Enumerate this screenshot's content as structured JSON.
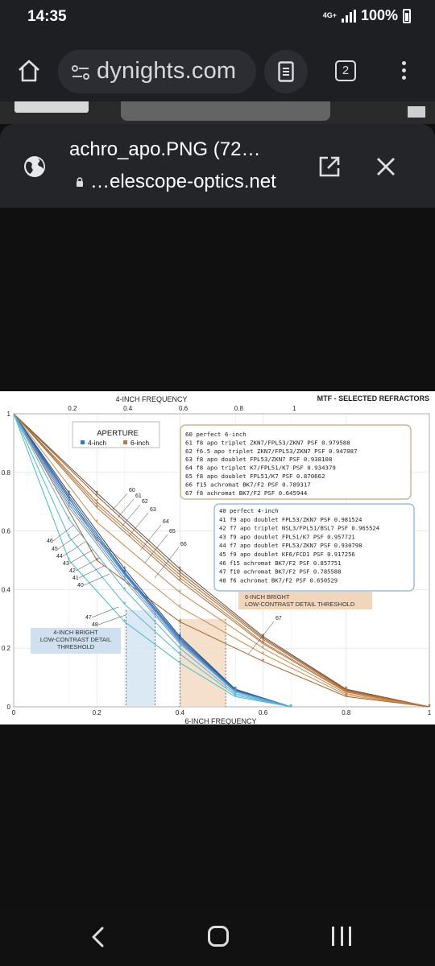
{
  "status": {
    "time": "14:35",
    "network": "4G+",
    "battery": "100%"
  },
  "browser": {
    "url": "dynights.com",
    "tab_count": "2"
  },
  "sheet": {
    "title": "achro_apo.PNG (72…",
    "url": "…elescope-optics.net"
  },
  "chart_data": {
    "type": "line",
    "title": "MTF - SELECTED REFRACTORS",
    "xlabel_top": "4-INCH FREQUENCY",
    "xlabel_bottom": "6-INCH FREQUENCY",
    "top_ticks": [
      "0.2",
      "0.4",
      "0.6",
      "0.8",
      "1"
    ],
    "bottom_ticks": [
      "0",
      "0.2",
      "0.4",
      "0.6",
      "0.8",
      "1"
    ],
    "y_ticks": [
      "0",
      "0.2",
      "0.4",
      "0.6",
      "0.8",
      "1"
    ],
    "xlim": [
      0,
      1
    ],
    "ylim": [
      0,
      1
    ],
    "legend": {
      "title": "APERTURE",
      "items": [
        "4-inch",
        "6-inch"
      ]
    },
    "colors": {
      "four_inch": "#1f7fd0",
      "six_inch": "#c8742e"
    },
    "six_inch_box": [
      "60  perfect 6-inch",
      "61  f8 apo triplet ZKN7/FPL53/ZKN7   PSF 0.979588",
      "62  f6.5 apo triplet ZKN7/FPL53/ZKN7  PSF 0.947087",
      "63  f8 apo doublet FPL53/ZKN7  PSF 0.938108",
      "64  f8 apo triplet K7/FPL51/K7  PSF 0.934379",
      "65  f8 apo doublet FPL51/K7  PSF 0.870662",
      "66  f15 achromat BK7/F2  PSF 0.789317",
      "67  f8 achromat BK7/F2  PSF 0.645944"
    ],
    "four_inch_box": [
      "40  perfect 4-inch",
      "41  f9 apo doublet  FPL53/ZKN7  PSF 0.981524",
      "42  f7 apo triplet  NSL3/FPL51/BSL7  PSF 0.965524",
      "43  f9 apo doublet  FPL51/K7  PSF 0.957721",
      "44  f7 apo doublet  FPL53/ZKN7  PSF 0.930798",
      "45  f9 apo doublet  KF6/FCD1  PSF 0.917256",
      "46  f15 achromat  BK7/F2  PSF 0.857751",
      "47  f10 achromat  BK7/F2  PSF 0.785588",
      "48  f6 achromat  BK7/F2  PSF 0.650529"
    ],
    "six_inch_threshold": [
      "6-INCH BRIGHT",
      "LOW-CONTRAST DETAIL THRESHOLD"
    ],
    "four_inch_threshold": [
      "4-INCH BRIGHT",
      "LOW-CONTRAST DETAIL",
      "THRESHOLD"
    ],
    "six_labels": [
      "60",
      "61",
      "62",
      "63",
      "64",
      "65",
      "66",
      "67"
    ],
    "four_labels": [
      "46",
      "45",
      "44",
      "43",
      "42",
      "41",
      "40",
      "47",
      "48"
    ],
    "six_inch_series": [
      {
        "name": "60",
        "x": [
          0,
          0.2,
          0.4,
          0.6,
          0.8,
          1
        ],
        "y": [
          1,
          0.73,
          0.47,
          0.24,
          0.06,
          0
        ]
      },
      {
        "name": "61",
        "x": [
          0,
          0.2,
          0.4,
          0.6,
          0.8,
          1
        ],
        "y": [
          1,
          0.72,
          0.46,
          0.235,
          0.058,
          0
        ]
      },
      {
        "name": "62",
        "x": [
          0,
          0.2,
          0.4,
          0.6,
          0.8,
          1
        ],
        "y": [
          1,
          0.7,
          0.45,
          0.23,
          0.055,
          0
        ]
      },
      {
        "name": "63",
        "x": [
          0,
          0.2,
          0.4,
          0.6,
          0.8,
          1
        ],
        "y": [
          1,
          0.69,
          0.44,
          0.22,
          0.053,
          0
        ]
      },
      {
        "name": "64",
        "x": [
          0,
          0.2,
          0.4,
          0.6,
          0.8,
          1
        ],
        "y": [
          1,
          0.68,
          0.43,
          0.215,
          0.05,
          0
        ]
      },
      {
        "name": "65",
        "x": [
          0,
          0.2,
          0.4,
          0.6,
          0.8,
          1
        ],
        "y": [
          1,
          0.63,
          0.39,
          0.2,
          0.045,
          0
        ]
      },
      {
        "name": "66",
        "x": [
          0,
          0.2,
          0.4,
          0.6,
          0.8,
          1
        ],
        "y": [
          1,
          0.57,
          0.34,
          0.18,
          0.04,
          0
        ]
      },
      {
        "name": "67",
        "x": [
          0,
          0.2,
          0.4,
          0.6,
          0.8,
          1
        ],
        "y": [
          1,
          0.5,
          0.29,
          0.155,
          0.035,
          0
        ]
      }
    ],
    "four_inch_series": [
      {
        "name": "40",
        "x": [
          0,
          0.133,
          0.267,
          0.4,
          0.533,
          0.667
        ],
        "y": [
          1,
          0.73,
          0.47,
          0.24,
          0.06,
          0
        ]
      },
      {
        "name": "41",
        "x": [
          0,
          0.133,
          0.267,
          0.4,
          0.533,
          0.667
        ],
        "y": [
          1,
          0.72,
          0.46,
          0.235,
          0.058,
          0
        ]
      },
      {
        "name": "42",
        "x": [
          0,
          0.133,
          0.267,
          0.4,
          0.533,
          0.667
        ],
        "y": [
          1,
          0.71,
          0.455,
          0.23,
          0.056,
          0
        ]
      },
      {
        "name": "43",
        "x": [
          0,
          0.133,
          0.267,
          0.4,
          0.533,
          0.667
        ],
        "y": [
          1,
          0.7,
          0.45,
          0.225,
          0.055,
          0
        ]
      },
      {
        "name": "44",
        "x": [
          0,
          0.133,
          0.267,
          0.4,
          0.533,
          0.667
        ],
        "y": [
          1,
          0.69,
          0.44,
          0.22,
          0.053,
          0
        ]
      },
      {
        "name": "45",
        "x": [
          0,
          0.133,
          0.267,
          0.4,
          0.533,
          0.667
        ],
        "y": [
          1,
          0.68,
          0.43,
          0.215,
          0.05,
          0
        ]
      },
      {
        "name": "46",
        "x": [
          0,
          0.133,
          0.267,
          0.4,
          0.533,
          0.667
        ],
        "y": [
          1,
          0.64,
          0.4,
          0.2,
          0.045,
          0
        ]
      },
      {
        "name": "47",
        "x": [
          0,
          0.133,
          0.267,
          0.4,
          0.533,
          0.667
        ],
        "y": [
          1,
          0.58,
          0.35,
          0.18,
          0.04,
          0
        ]
      },
      {
        "name": "48",
        "x": [
          0,
          0.133,
          0.267,
          0.4,
          0.533,
          0.667
        ],
        "y": [
          1,
          0.5,
          0.29,
          0.15,
          0.035,
          0
        ]
      }
    ],
    "four_inch_threshold_band": [
      0.27,
      0.34
    ],
    "six_inch_threshold_band": [
      0.4,
      0.51
    ]
  }
}
